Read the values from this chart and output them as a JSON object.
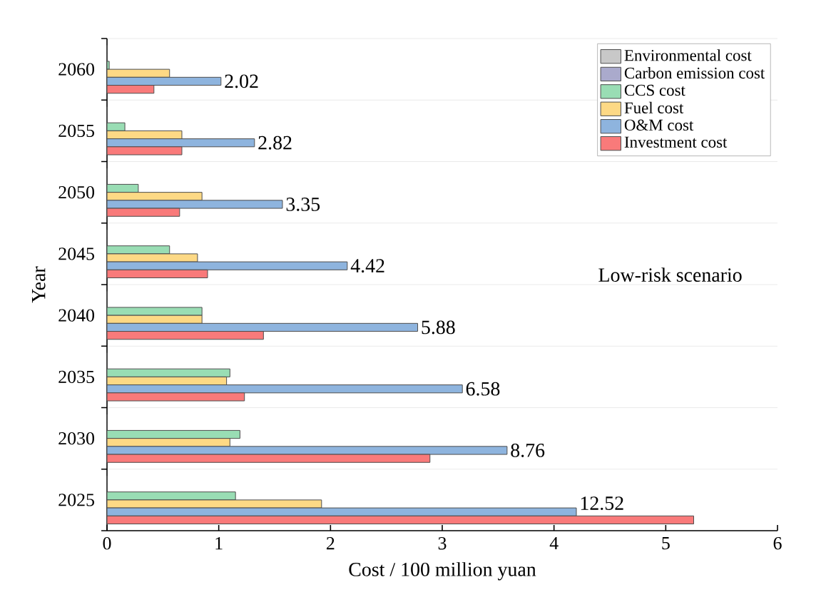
{
  "chart_data": {
    "type": "bar",
    "orientation": "horizontal",
    "xlabel": "Cost / 100 million yuan",
    "ylabel": "Year",
    "categories": [
      "2060",
      "2055",
      "2050",
      "2045",
      "2040",
      "2035",
      "2030",
      "2025"
    ],
    "series": [
      {
        "name": "Environmental cost",
        "color": "#c8c8c8",
        "values": [
          0,
          0,
          0,
          0,
          0,
          0,
          0,
          0
        ]
      },
      {
        "name": "Carbon emission cost",
        "color": "#aaaacc",
        "values": [
          0,
          0,
          0,
          0,
          0,
          0,
          0,
          0
        ]
      },
      {
        "name": "CCS cost",
        "color": "#99ddb4",
        "values": [
          0.02,
          0.16,
          0.28,
          0.56,
          0.85,
          1.1,
          1.19,
          1.15
        ]
      },
      {
        "name": "Fuel cost",
        "color": "#fdd985",
        "values": [
          0.56,
          0.67,
          0.85,
          0.81,
          0.85,
          1.07,
          1.1,
          1.92
        ]
      },
      {
        "name": "O&M cost",
        "color": "#8eb4de",
        "values": [
          1.02,
          1.32,
          1.57,
          2.15,
          2.78,
          3.18,
          3.58,
          4.2
        ]
      },
      {
        "name": "Investment cost",
        "color": "#f97a7a",
        "values": [
          0.42,
          0.67,
          0.65,
          0.9,
          1.4,
          1.23,
          2.89,
          5.25
        ]
      }
    ],
    "totals": [
      "2.02",
      "2.82",
      "3.35",
      "4.42",
      "5.88",
      "6.58",
      "8.76",
      "12.52"
    ],
    "annotations": [
      "Low-risk scenario"
    ],
    "xlim": [
      0,
      6
    ],
    "xticks": [
      0,
      1,
      2,
      3,
      4,
      5,
      6
    ],
    "grid": "y",
    "legend": "top right"
  }
}
